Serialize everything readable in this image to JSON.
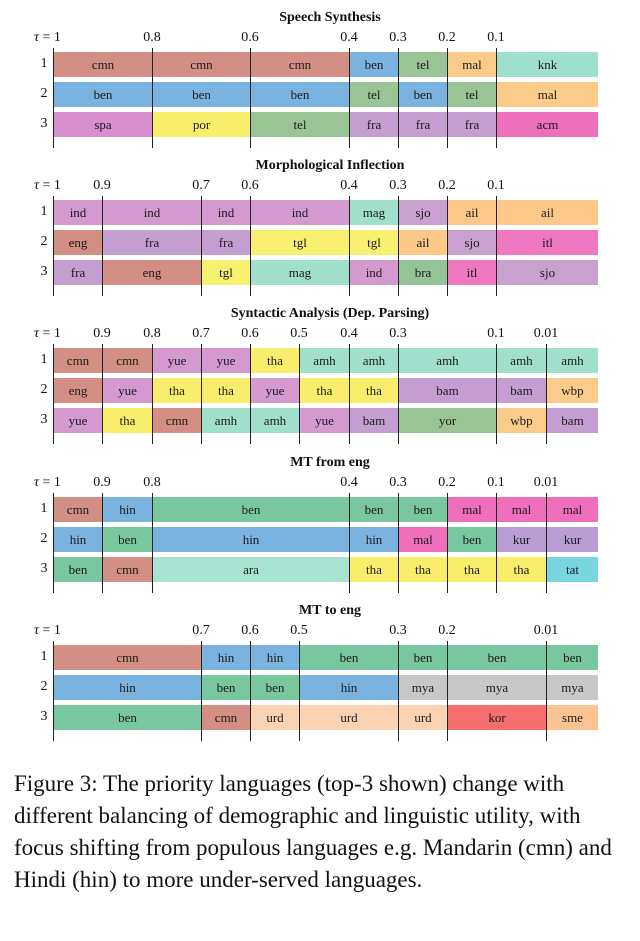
{
  "colors": {
    "cmn": "#d48f85",
    "ben": "#7ab3df",
    "tel": "#99c493",
    "mal": "#fbcb89",
    "knk": "#9fdfce",
    "spa": "#d88fd0",
    "por": "#f8ee6b",
    "fra": "#c49ed0",
    "acm": "#ef6fbc",
    "ind": "#d49ad0",
    "mag": "#9fdfcb",
    "sjo": "#c9a1cf",
    "ail": "#fcc98b",
    "eng": "#d48f85",
    "tgl": "#f8f070",
    "itl": "#ef78c0",
    "bra": "#93c495",
    "yue": "#d49ad0",
    "tha": "#f8ee6b",
    "amh": "#9fdfcb",
    "bam": "#c49ed0",
    "wbp": "#fbcb89",
    "yor": "#99c493",
    "hin": "#7ab3df",
    "kur": "#b89ed5",
    "ara": "#a8e3d2",
    "tat": "#79d6e1",
    "mya": "#c8c8c8",
    "urd": "#fcd3b2",
    "kor": "#f66e6e",
    "sme": "#fbc391",
    "ben_mt": "#79c79f"
  },
  "panels": [
    {
      "title": "Speech Synthesis",
      "ticks": [
        [
          "1",
          53
        ],
        [
          "0.8",
          152
        ],
        [
          "0.6",
          250
        ],
        [
          "0.4",
          349
        ],
        [
          "0.3",
          398
        ],
        [
          "0.2",
          447
        ],
        [
          "0.1",
          496
        ]
      ],
      "rows": [
        [
          [
            "cmn",
            53,
            152
          ],
          [
            "cmn",
            152,
            250
          ],
          [
            "cmn",
            250,
            349
          ],
          [
            "ben",
            349,
            398
          ],
          [
            "tel",
            398,
            447
          ],
          [
            "mal",
            447,
            496
          ],
          [
            "knk",
            496,
            598
          ]
        ],
        [
          [
            "ben",
            53,
            152
          ],
          [
            "ben",
            152,
            250
          ],
          [
            "ben",
            250,
            349
          ],
          [
            "tel",
            349,
            398
          ],
          [
            "ben",
            398,
            447
          ],
          [
            "tel",
            447,
            496
          ],
          [
            "mal",
            496,
            598
          ]
        ],
        [
          [
            "spa",
            53,
            152
          ],
          [
            "por",
            152,
            250
          ],
          [
            "tel",
            250,
            349
          ],
          [
            "fra",
            349,
            398
          ],
          [
            "fra",
            398,
            447
          ],
          [
            "fra",
            447,
            496
          ],
          [
            "acm",
            496,
            598
          ]
        ]
      ]
    },
    {
      "title": "Morphological Inflection",
      "ticks": [
        [
          "1",
          53
        ],
        [
          "0.9",
          102
        ],
        [
          "0.7",
          201
        ],
        [
          "0.6",
          250
        ],
        [
          "0.4",
          349
        ],
        [
          "0.3",
          398
        ],
        [
          "0.2",
          447
        ],
        [
          "0.1",
          496
        ]
      ],
      "rows": [
        [
          [
            "ind",
            53,
            102
          ],
          [
            "ind",
            102,
            201
          ],
          [
            "ind",
            201,
            250
          ],
          [
            "ind",
            250,
            349
          ],
          [
            "mag",
            349,
            398
          ],
          [
            "sjo",
            398,
            447
          ],
          [
            "ail",
            447,
            496
          ],
          [
            "ail",
            496,
            598
          ]
        ],
        [
          [
            "eng",
            53,
            102
          ],
          [
            "fra",
            102,
            201
          ],
          [
            "fra",
            201,
            250
          ],
          [
            "tgl",
            250,
            349
          ],
          [
            "tgl",
            349,
            398
          ],
          [
            "ail",
            398,
            447
          ],
          [
            "sjo",
            447,
            496
          ],
          [
            "itl",
            496,
            598
          ]
        ],
        [
          [
            "fra",
            53,
            102
          ],
          [
            "eng",
            102,
            201
          ],
          [
            "tgl",
            201,
            250
          ],
          [
            "mag",
            250,
            349
          ],
          [
            "ind",
            349,
            398
          ],
          [
            "bra",
            398,
            447
          ],
          [
            "itl",
            447,
            496
          ],
          [
            "sjo",
            496,
            598
          ]
        ]
      ]
    },
    {
      "title": "Syntactic Analysis (Dep. Parsing)",
      "ticks": [
        [
          "1",
          53
        ],
        [
          "0.9",
          102
        ],
        [
          "0.8",
          152
        ],
        [
          "0.7",
          201
        ],
        [
          "0.6",
          250
        ],
        [
          "0.5",
          299
        ],
        [
          "0.4",
          349
        ],
        [
          "0.3",
          398
        ],
        [
          "0.1",
          496
        ],
        [
          "0.01",
          546
        ]
      ],
      "rows": [
        [
          [
            "cmn",
            53,
            102
          ],
          [
            "cmn",
            102,
            152
          ],
          [
            "yue",
            152,
            201
          ],
          [
            "yue",
            201,
            250
          ],
          [
            "tha",
            250,
            299
          ],
          [
            "amh",
            299,
            349
          ],
          [
            "amh",
            349,
            398
          ],
          [
            "amh",
            398,
            496
          ],
          [
            "amh",
            496,
            546
          ],
          [
            "amh",
            546,
            598
          ]
        ],
        [
          [
            "eng",
            53,
            102
          ],
          [
            "yue",
            102,
            152
          ],
          [
            "tha",
            152,
            201
          ],
          [
            "tha",
            201,
            250
          ],
          [
            "yue",
            250,
            299
          ],
          [
            "tha",
            299,
            349
          ],
          [
            "tha",
            349,
            398
          ],
          [
            "bam",
            398,
            496
          ],
          [
            "bam",
            496,
            546
          ],
          [
            "wbp",
            546,
            598
          ]
        ],
        [
          [
            "yue",
            53,
            102
          ],
          [
            "tha",
            102,
            152
          ],
          [
            "cmn",
            152,
            201
          ],
          [
            "amh",
            201,
            250
          ],
          [
            "amh",
            250,
            299
          ],
          [
            "yue",
            299,
            349
          ],
          [
            "bam",
            349,
            398
          ],
          [
            "yor",
            398,
            496
          ],
          [
            "wbp",
            496,
            546
          ],
          [
            "bam",
            546,
            598
          ]
        ]
      ]
    },
    {
      "title": "MT from eng",
      "ticks": [
        [
          "1",
          53
        ],
        [
          "0.9",
          102
        ],
        [
          "0.8",
          152
        ],
        [
          "0.4",
          349
        ],
        [
          "0.3",
          398
        ],
        [
          "0.2",
          447
        ],
        [
          "0.1",
          496
        ],
        [
          "0.01",
          546
        ]
      ],
      "rows": [
        [
          [
            "cmn",
            53,
            102
          ],
          [
            "hin",
            102,
            152
          ],
          [
            "ben_mt",
            152,
            349
          ],
          [
            "ben_mt",
            349,
            398
          ],
          [
            "ben_mt",
            398,
            447
          ],
          [
            "acm",
            447,
            496
          ],
          [
            "acm",
            496,
            546
          ],
          [
            "acm",
            546,
            598
          ]
        ],
        [
          [
            "hin",
            53,
            102
          ],
          [
            "ben_mt",
            102,
            152
          ],
          [
            "hin",
            152,
            349
          ],
          [
            "hin",
            349,
            398
          ],
          [
            "acm",
            398,
            447
          ],
          [
            "ben_mt",
            447,
            496
          ],
          [
            "kur",
            496,
            546
          ],
          [
            "kur",
            546,
            598
          ]
        ],
        [
          [
            "ben_mt",
            53,
            102
          ],
          [
            "cmn",
            102,
            152
          ],
          [
            "ara",
            152,
            349
          ],
          [
            "tha",
            349,
            398
          ],
          [
            "tha",
            398,
            447
          ],
          [
            "tha",
            447,
            496
          ],
          [
            "tha",
            496,
            546
          ],
          [
            "tat",
            546,
            598
          ]
        ]
      ],
      "labels": [
        [
          "cmn",
          "hin",
          "ben",
          "ben",
          "ben",
          "mal",
          "mal",
          "mal"
        ],
        [
          "hin",
          "ben",
          "hin",
          "hin",
          "mal",
          "ben",
          "kur",
          "kur"
        ],
        [
          "ben",
          "cmn",
          "ara",
          "tha",
          "tha",
          "tha",
          "tha",
          "tat"
        ]
      ]
    },
    {
      "title": "MT to eng",
      "ticks": [
        [
          "1",
          53
        ],
        [
          "0.7",
          201
        ],
        [
          "0.6",
          250
        ],
        [
          "0.5",
          299
        ],
        [
          "0.3",
          398
        ],
        [
          "0.2",
          447
        ],
        [
          "0.01",
          546
        ]
      ],
      "rows": [
        [
          [
            "cmn",
            53,
            201
          ],
          [
            "hin",
            201,
            250
          ],
          [
            "hin",
            250,
            299
          ],
          [
            "ben_mt",
            299,
            398
          ],
          [
            "ben_mt",
            398,
            447
          ],
          [
            "ben_mt",
            447,
            546
          ],
          [
            "ben_mt",
            546,
            598
          ]
        ],
        [
          [
            "hin",
            53,
            201
          ],
          [
            "ben_mt",
            201,
            250
          ],
          [
            "ben_mt",
            250,
            299
          ],
          [
            "hin",
            299,
            398
          ],
          [
            "mya",
            398,
            447
          ],
          [
            "mya",
            447,
            546
          ],
          [
            "mya",
            546,
            598
          ]
        ],
        [
          [
            "ben_mt",
            53,
            201
          ],
          [
            "cmn",
            201,
            250
          ],
          [
            "urd",
            250,
            299
          ],
          [
            "urd",
            299,
            398
          ],
          [
            "urd",
            398,
            447
          ],
          [
            "kor",
            447,
            546
          ],
          [
            "sme",
            546,
            598
          ]
        ]
      ],
      "labels": [
        [
          "cmn",
          "hin",
          "hin",
          "ben",
          "ben",
          "ben",
          "ben"
        ],
        [
          "hin",
          "ben",
          "ben",
          "hin",
          "mya",
          "mya",
          "mya"
        ],
        [
          "ben",
          "cmn",
          "urd",
          "urd",
          "urd",
          "kor",
          "sme"
        ]
      ]
    }
  ],
  "tau_symbol": "τ = ",
  "rank_labels": [
    "1",
    "2",
    "3"
  ],
  "caption": "Figure 3: The priority languages (top-3 shown) change with different balancing of demographic and linguistic utility, with focus shifting from populous languages e.g. Mandarin (cmn) and Hindi (hin) to more under-served languages."
}
